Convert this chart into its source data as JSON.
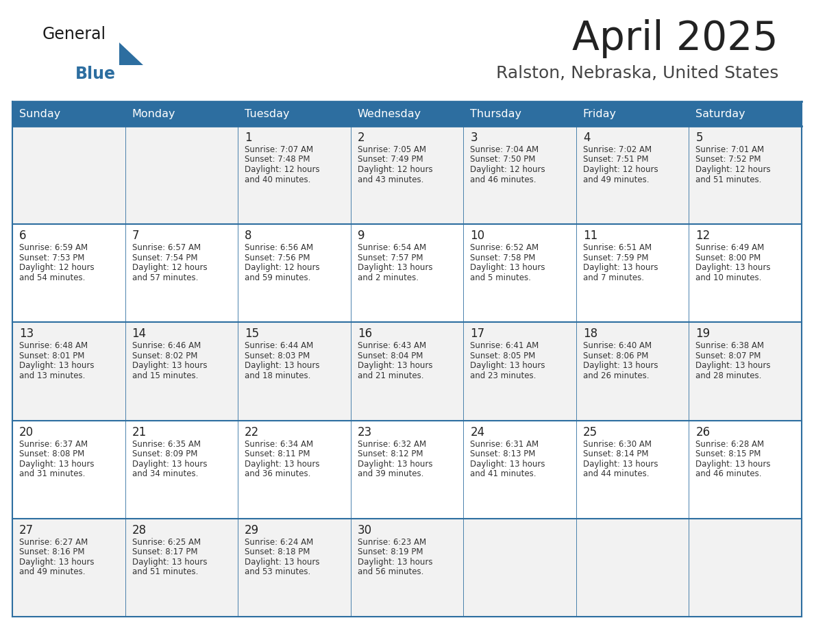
{
  "title": "April 2025",
  "subtitle": "Ralston, Nebraska, United States",
  "header_bg_color": "#2D6EA0",
  "header_text_color": "#FFFFFF",
  "row_bg_even": "#F2F2F2",
  "row_bg_odd": "#FFFFFF",
  "border_color": "#2D6EA0",
  "title_color": "#222222",
  "subtitle_color": "#444444",
  "text_color": "#333333",
  "day_number_color": "#222222",
  "day_names": [
    "Sunday",
    "Monday",
    "Tuesday",
    "Wednesday",
    "Thursday",
    "Friday",
    "Saturday"
  ],
  "weeks": [
    [
      {
        "day": "",
        "info": ""
      },
      {
        "day": "",
        "info": ""
      },
      {
        "day": "1",
        "info": "Sunrise: 7:07 AM\nSunset: 7:48 PM\nDaylight: 12 hours\nand 40 minutes."
      },
      {
        "day": "2",
        "info": "Sunrise: 7:05 AM\nSunset: 7:49 PM\nDaylight: 12 hours\nand 43 minutes."
      },
      {
        "day": "3",
        "info": "Sunrise: 7:04 AM\nSunset: 7:50 PM\nDaylight: 12 hours\nand 46 minutes."
      },
      {
        "day": "4",
        "info": "Sunrise: 7:02 AM\nSunset: 7:51 PM\nDaylight: 12 hours\nand 49 minutes."
      },
      {
        "day": "5",
        "info": "Sunrise: 7:01 AM\nSunset: 7:52 PM\nDaylight: 12 hours\nand 51 minutes."
      }
    ],
    [
      {
        "day": "6",
        "info": "Sunrise: 6:59 AM\nSunset: 7:53 PM\nDaylight: 12 hours\nand 54 minutes."
      },
      {
        "day": "7",
        "info": "Sunrise: 6:57 AM\nSunset: 7:54 PM\nDaylight: 12 hours\nand 57 minutes."
      },
      {
        "day": "8",
        "info": "Sunrise: 6:56 AM\nSunset: 7:56 PM\nDaylight: 12 hours\nand 59 minutes."
      },
      {
        "day": "9",
        "info": "Sunrise: 6:54 AM\nSunset: 7:57 PM\nDaylight: 13 hours\nand 2 minutes."
      },
      {
        "day": "10",
        "info": "Sunrise: 6:52 AM\nSunset: 7:58 PM\nDaylight: 13 hours\nand 5 minutes."
      },
      {
        "day": "11",
        "info": "Sunrise: 6:51 AM\nSunset: 7:59 PM\nDaylight: 13 hours\nand 7 minutes."
      },
      {
        "day": "12",
        "info": "Sunrise: 6:49 AM\nSunset: 8:00 PM\nDaylight: 13 hours\nand 10 minutes."
      }
    ],
    [
      {
        "day": "13",
        "info": "Sunrise: 6:48 AM\nSunset: 8:01 PM\nDaylight: 13 hours\nand 13 minutes."
      },
      {
        "day": "14",
        "info": "Sunrise: 6:46 AM\nSunset: 8:02 PM\nDaylight: 13 hours\nand 15 minutes."
      },
      {
        "day": "15",
        "info": "Sunrise: 6:44 AM\nSunset: 8:03 PM\nDaylight: 13 hours\nand 18 minutes."
      },
      {
        "day": "16",
        "info": "Sunrise: 6:43 AM\nSunset: 8:04 PM\nDaylight: 13 hours\nand 21 minutes."
      },
      {
        "day": "17",
        "info": "Sunrise: 6:41 AM\nSunset: 8:05 PM\nDaylight: 13 hours\nand 23 minutes."
      },
      {
        "day": "18",
        "info": "Sunrise: 6:40 AM\nSunset: 8:06 PM\nDaylight: 13 hours\nand 26 minutes."
      },
      {
        "day": "19",
        "info": "Sunrise: 6:38 AM\nSunset: 8:07 PM\nDaylight: 13 hours\nand 28 minutes."
      }
    ],
    [
      {
        "day": "20",
        "info": "Sunrise: 6:37 AM\nSunset: 8:08 PM\nDaylight: 13 hours\nand 31 minutes."
      },
      {
        "day": "21",
        "info": "Sunrise: 6:35 AM\nSunset: 8:09 PM\nDaylight: 13 hours\nand 34 minutes."
      },
      {
        "day": "22",
        "info": "Sunrise: 6:34 AM\nSunset: 8:11 PM\nDaylight: 13 hours\nand 36 minutes."
      },
      {
        "day": "23",
        "info": "Sunrise: 6:32 AM\nSunset: 8:12 PM\nDaylight: 13 hours\nand 39 minutes."
      },
      {
        "day": "24",
        "info": "Sunrise: 6:31 AM\nSunset: 8:13 PM\nDaylight: 13 hours\nand 41 minutes."
      },
      {
        "day": "25",
        "info": "Sunrise: 6:30 AM\nSunset: 8:14 PM\nDaylight: 13 hours\nand 44 minutes."
      },
      {
        "day": "26",
        "info": "Sunrise: 6:28 AM\nSunset: 8:15 PM\nDaylight: 13 hours\nand 46 minutes."
      }
    ],
    [
      {
        "day": "27",
        "info": "Sunrise: 6:27 AM\nSunset: 8:16 PM\nDaylight: 13 hours\nand 49 minutes."
      },
      {
        "day": "28",
        "info": "Sunrise: 6:25 AM\nSunset: 8:17 PM\nDaylight: 13 hours\nand 51 minutes."
      },
      {
        "day": "29",
        "info": "Sunrise: 6:24 AM\nSunset: 8:18 PM\nDaylight: 13 hours\nand 53 minutes."
      },
      {
        "day": "30",
        "info": "Sunrise: 6:23 AM\nSunset: 8:19 PM\nDaylight: 13 hours\nand 56 minutes."
      },
      {
        "day": "",
        "info": ""
      },
      {
        "day": "",
        "info": ""
      },
      {
        "day": "",
        "info": ""
      }
    ]
  ]
}
